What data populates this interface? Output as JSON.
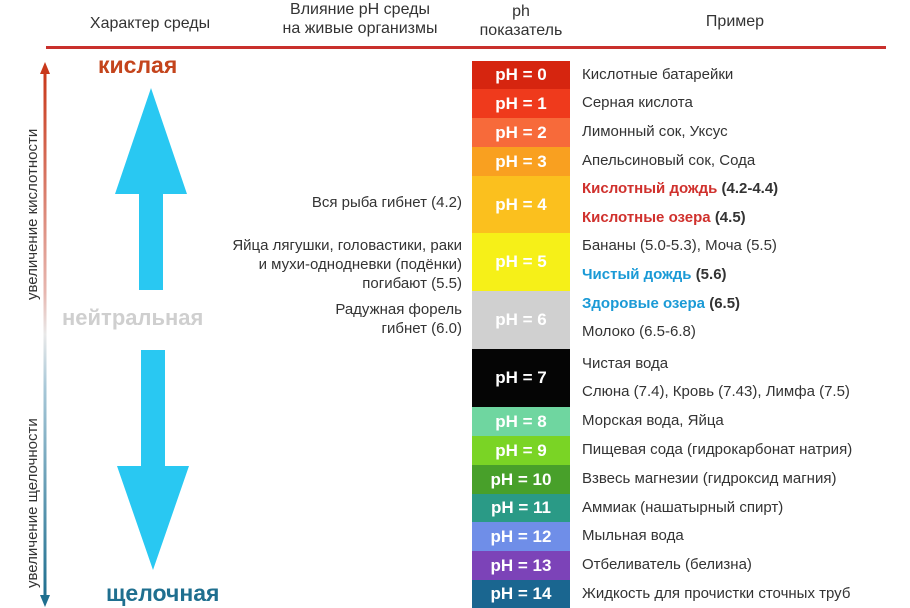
{
  "headers": {
    "character": "Характер среды",
    "influence_line1": "Влияние pH среды",
    "influence_line2": "на живые организмы",
    "ph_line1": "ph",
    "ph_line2": "показатель",
    "example": "Пример"
  },
  "axis": {
    "up_label": "увеличение кислотности",
    "down_label": "увеличение щелочности"
  },
  "levels": {
    "acid": "кислая",
    "neutral": "нейтральная",
    "alkaline": "щелочная"
  },
  "colors": {
    "header_line": "#c9302c",
    "acid_label": "#c4441c",
    "neutral_label": "#cfcfcf",
    "alkaline_label": "#1f6f8f",
    "arrow": "#29c8f2",
    "highlight_red": "#d0312d",
    "highlight_blue": "#1a9ad6"
  },
  "scale": [
    {
      "label": "pH = 0",
      "color": "#d6250f"
    },
    {
      "label": "pH = 1",
      "color": "#ef3a1c"
    },
    {
      "label": "pH = 2",
      "color": "#f76a3a"
    },
    {
      "label": "pH = 3",
      "color": "#f9a020"
    },
    {
      "label": "pH = 4",
      "color": "#fbc01e"
    },
    {
      "label": "pH = 5",
      "color": "#f6f018"
    },
    {
      "label": "pH = 6",
      "color": "#d0d0d0"
    },
    {
      "label": "pH = 7",
      "color": "#050505"
    },
    {
      "label": "pH = 8",
      "color": "#6fd6a0"
    },
    {
      "label": "pH = 9",
      "color": "#7ad425"
    },
    {
      "label": "pH = 10",
      "color": "#48a02a"
    },
    {
      "label": "pH = 11",
      "color": "#2a9a86"
    },
    {
      "label": "pH = 12",
      "color": "#6f8ee8"
    },
    {
      "label": "pH = 13",
      "color": "#7c43b8"
    },
    {
      "label": "pH = 14",
      "color": "#1a6690"
    }
  ],
  "effects": {
    "ph4": "Вся рыба гибнет (4.2)",
    "ph5_line1": "Яйца лягушки, головастики, раки",
    "ph5_line2": "и мухи-одноднeвки (подёнки)",
    "ph5_line3": "погибают (5.5)",
    "ph6_line1": "Радужная форель",
    "ph6_line2": "гибнет (6.0)"
  },
  "examples": {
    "e0": "Кислотные батарейки",
    "e1": "Серная кислота",
    "e2": "Лимонный сок, Уксус",
    "e3": "Апельсиновый сок, Сода",
    "e4a_main": "Кислотный дождь",
    "e4a_tail": "(4.2-4.4)",
    "e4b_main": "Кислотные озера",
    "e4b_tail": "(4.5)",
    "e5a": "Бананы (5.0-5.3), Моча (5.5)",
    "e5b_main": "Чистый дождь",
    "e5b_tail": "(5.6)",
    "e6a_main": "Здоровые озера",
    "e6a_tail": "(6.5)",
    "e6b": "Молоко (6.5-6.8)",
    "e7a": "Чистая вода",
    "e7b": "Слюна (7.4), Кровь (7.43), Лимфа (7.5)",
    "e8": "Морская вода, Яйца",
    "e9": "Пищевая сода (гидрокарбонат натрия)",
    "e10": "Взвесь магнезии (гидроксид магния)",
    "e11": "Аммиак (нашатырный спирт)",
    "e12": "Мыльная вода",
    "e13": "Отбеливатель (белизна)",
    "e14": "Жидкость для прочистки сточных труб"
  }
}
